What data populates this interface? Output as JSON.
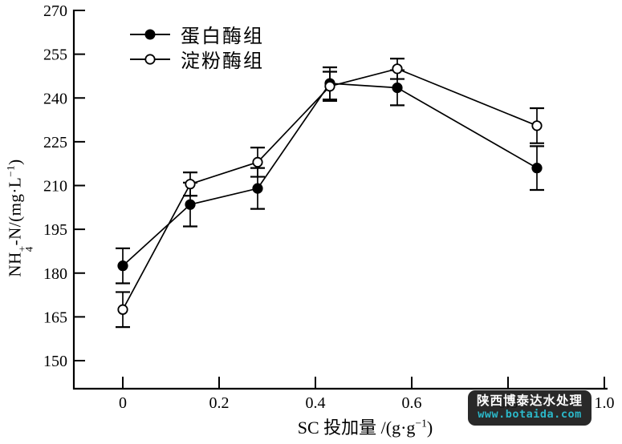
{
  "chart_data": {
    "type": "line",
    "title": "",
    "x": [
      0,
      0.14,
      0.28,
      0.43,
      0.57,
      0.86
    ],
    "series": [
      {
        "name": "蛋白酶组",
        "marker": "filled-circle",
        "values": [
          182.5,
          203.5,
          209,
          245,
          243.5,
          216
        ],
        "errors": [
          6,
          7.5,
          7,
          5.5,
          6,
          7.5
        ]
      },
      {
        "name": "淀粉酶组",
        "marker": "open-circle",
        "values": [
          167.5,
          210.5,
          218,
          244,
          250,
          230.5
        ],
        "errors": [
          6,
          4,
          5,
          5,
          3.5,
          6
        ]
      }
    ],
    "xlabel": "SC 投加量 /(g·g−1)",
    "ylabel": "NH4+-N/(mg·L−1)",
    "xlabel_parts": {
      "pre": "SC 投加量 /(g·g",
      "sup": "−1",
      "post": ")"
    },
    "ylabel_parts": {
      "pre": "NH",
      "sub": "4",
      "sup": "+",
      "mid": "-N/(mg·L",
      "sup2": "−1",
      "post": ")"
    },
    "x_ticks": [
      0,
      0.2,
      0.4,
      0.6,
      0.8,
      1.0
    ],
    "x_tick_labels": [
      "0",
      "0.2",
      "0.4",
      "0.6",
      "0.8",
      "1.0"
    ],
    "y_ticks": [
      150,
      165,
      180,
      195,
      210,
      225,
      240,
      255,
      270
    ],
    "x_range": [
      0,
      1.0
    ],
    "y_range": [
      150,
      270
    ],
    "grid": false,
    "legend_position": "top-left-inside",
    "colors": {
      "line": "#000000",
      "background": "#ffffff"
    }
  },
  "watermark": {
    "line1": "陕西博泰达水处理",
    "line2": "www.botaida.com",
    "bg": "#181818",
    "text_color": "#fdfdfd",
    "url_color": "#2bb8c9"
  }
}
